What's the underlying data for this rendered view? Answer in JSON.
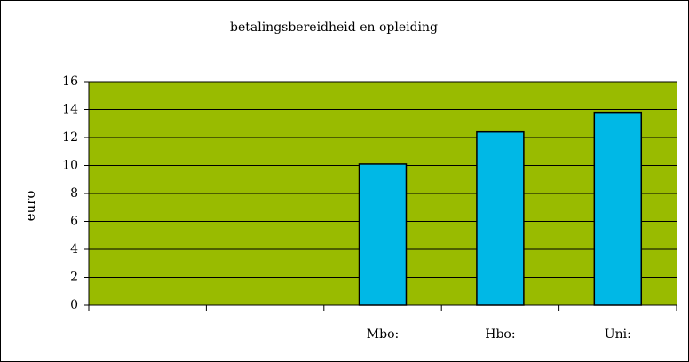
{
  "chart_data": {
    "type": "bar",
    "title": "betalingsbereidheid en opleiding",
    "y_label": "euro",
    "categories": [
      null,
      null,
      "Mbo:",
      "Hbo:",
      "Uni:"
    ],
    "values": [
      null,
      null,
      10.1,
      12.4,
      13.8
    ],
    "color": "#00b8e6",
    "background": "#99bb00",
    "ylim": [
      0,
      16
    ],
    "yticks": [
      0,
      2,
      4,
      6,
      8,
      10,
      12,
      14,
      16
    ],
    "grid": true
  }
}
